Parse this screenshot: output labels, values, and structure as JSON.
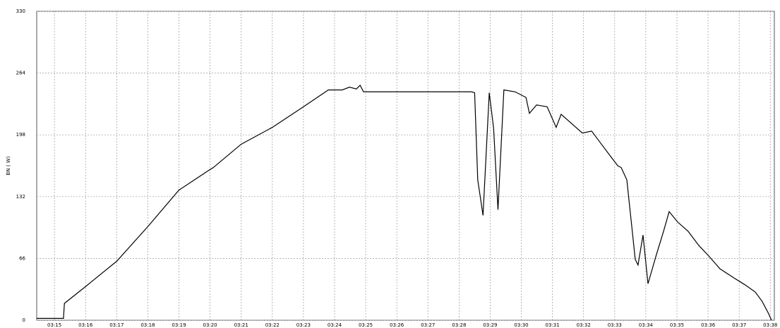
{
  "chart_data": {
    "type": "line",
    "y_label": "BN ( W)",
    "x": [
      14.43,
      15.29,
      15.32,
      16,
      17,
      18,
      19,
      20,
      20.1,
      21,
      22,
      23,
      23.8,
      24.25,
      24.48,
      24.7,
      24.82,
      24.93,
      28.4,
      28.5,
      28.6,
      28.77,
      28.97,
      29.11,
      29.25,
      29.44,
      29.8,
      30.15,
      30.26,
      30.49,
      30.83,
      31.12,
      31.28,
      31.62,
      31.96,
      32.26,
      32.53,
      32.87,
      33.1,
      33.21,
      33.39,
      33.55,
      33.66,
      33.75,
      33.91,
      34.07,
      34.34,
      34.57,
      34.75,
      35.02,
      35.36,
      35.7,
      36.04,
      36.38,
      36.84,
      37.18,
      37.52,
      37.74,
      37.93,
      38.04
    ],
    "values": [
      2,
      2,
      18,
      36,
      63,
      100,
      139,
      161,
      163,
      188,
      206,
      228,
      246,
      246,
      249,
      247,
      251,
      244,
      244,
      243,
      150,
      112,
      243,
      205,
      118,
      246,
      244,
      238,
      221,
      230,
      228,
      206,
      220,
      210,
      200,
      202,
      190,
      175,
      165,
      163,
      150,
      100,
      65,
      59,
      91,
      39,
      70,
      95,
      116,
      105,
      95,
      80,
      68,
      55,
      45,
      38,
      30,
      20,
      8,
      0
    ],
    "color": "#000000",
    "xlim": [
      14.43,
      38.13
    ],
    "xticks": [
      {
        "value": 15,
        "label": "03:15"
      },
      {
        "value": 16,
        "label": "03:16"
      },
      {
        "value": 17,
        "label": "03:17"
      },
      {
        "value": 18,
        "label": "03:18"
      },
      {
        "value": 19,
        "label": "03:19"
      },
      {
        "value": 20,
        "label": "03:20"
      },
      {
        "value": 21,
        "label": "03:21"
      },
      {
        "value": 22,
        "label": "03:22"
      },
      {
        "value": 23,
        "label": "03:23"
      },
      {
        "value": 24,
        "label": "03:24"
      },
      {
        "value": 25,
        "label": "03:25"
      },
      {
        "value": 26,
        "label": "03:26"
      },
      {
        "value": 27,
        "label": "03:27"
      },
      {
        "value": 28,
        "label": "03:28"
      },
      {
        "value": 29,
        "label": "03:29"
      },
      {
        "value": 30,
        "label": "03:30"
      },
      {
        "value": 31,
        "label": "03:31"
      },
      {
        "value": 32,
        "label": "03:32"
      },
      {
        "value": 33,
        "label": "03:33"
      },
      {
        "value": 34,
        "label": "03:34"
      },
      {
        "value": 35,
        "label": "03:35"
      },
      {
        "value": 36,
        "label": "03:36"
      },
      {
        "value": 37,
        "label": "03:37"
      },
      {
        "value": 38,
        "label": "03:38"
      }
    ],
    "ylim": [
      0,
      330
    ],
    "yticks": [
      0,
      66,
      132,
      198,
      264,
      330
    ],
    "grid": true
  }
}
